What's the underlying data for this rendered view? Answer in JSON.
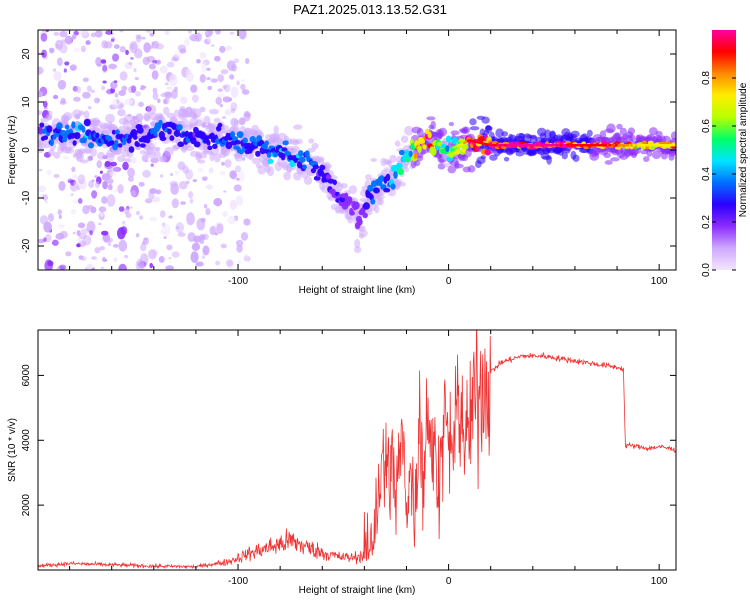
{
  "figure": {
    "title": "PAZ1.2025.013.13.52.G31"
  },
  "colorbar": {
    "label": "Normalized spectral amplitude",
    "ticks": [
      0.0,
      0.2,
      0.4,
      0.6,
      0.8
    ],
    "tick_labels": [
      "0.0",
      "0.2",
      "0.4",
      "0.6",
      "0.8"
    ],
    "colors": [
      "#f2e6ff",
      "#cfa9ff",
      "#8b2cff",
      "#2b00ff",
      "#0070ff",
      "#00e5ff",
      "#00ff66",
      "#b8ff00",
      "#ffee00",
      "#ff8a00",
      "#ff0000",
      "#ff00a0"
    ]
  },
  "chart_data": [
    {
      "type": "heatmap",
      "title": "",
      "xlabel": "Height of straight line (km)",
      "ylabel": "Frequency (Hz)",
      "xlim": [
        -195,
        108
      ],
      "ylim": [
        -25,
        25
      ],
      "xticks": [
        -100,
        0,
        100
      ],
      "xtick_labels": [
        "-100",
        "0",
        "100"
      ],
      "yticks": [
        -20,
        -10,
        0,
        10,
        20
      ],
      "ytick_labels": [
        "-20",
        "-10",
        "0",
        "10",
        "20"
      ],
      "value_label": "Normalized spectral amplitude",
      "value_range": [
        0,
        1
      ],
      "ridge": {
        "x": [
          -195,
          -175,
          -155,
          -135,
          -118,
          -105,
          -95,
          -85,
          -75,
          -65,
          -58,
          -50,
          -45,
          -42,
          -38,
          -33,
          -28,
          -22,
          -18,
          -14,
          -10,
          -5,
          0,
          5,
          10,
          20,
          40,
          60,
          80,
          95,
          108
        ],
        "frequency": [
          4,
          3,
          2,
          4,
          3,
          2,
          1,
          0,
          -1,
          -3,
          -6,
          -10,
          -13,
          -15,
          -9,
          -8,
          -6,
          -2,
          0,
          1,
          2,
          1,
          0,
          1,
          2,
          1,
          1,
          1,
          1,
          1,
          1
        ],
        "amplitude": [
          0.28,
          0.35,
          0.3,
          0.3,
          0.27,
          0.3,
          0.33,
          0.35,
          0.38,
          0.3,
          0.25,
          0.22,
          0.2,
          0.18,
          0.3,
          0.35,
          0.35,
          0.45,
          0.5,
          0.8,
          0.85,
          0.6,
          0.5,
          0.7,
          0.9,
          0.95,
          1.0,
          0.95,
          0.85,
          0.7,
          0.75
        ]
      },
      "scatter_extent_x": [
        -195,
        -100
      ]
    },
    {
      "type": "line",
      "title": "",
      "xlabel": "Height of straight line (km)",
      "ylabel": "SNR (10 * v/v)",
      "xlim": [
        -195,
        108
      ],
      "ylim": [
        0,
        7400
      ],
      "xticks": [
        -100,
        0,
        100
      ],
      "xtick_labels": [
        "-100",
        "0",
        "100"
      ],
      "yticks": [
        2000,
        4000,
        6000
      ],
      "ytick_labels": [
        "2000",
        "4000",
        "6000"
      ],
      "color": "#ee3333",
      "x": [
        -195,
        -180,
        -160,
        -140,
        -120,
        -105,
        -95,
        -85,
        -75,
        -65,
        -58,
        -52,
        -46,
        -40,
        -36,
        -32,
        -28,
        -25,
        -22,
        -20,
        -18,
        -16,
        -14,
        -12,
        -10,
        -8,
        -6,
        -4,
        -2,
        0,
        4,
        8,
        12,
        16,
        20,
        25,
        30,
        35,
        40,
        45,
        50,
        55,
        60,
        65,
        70,
        75,
        80,
        83,
        84,
        85,
        90,
        95,
        100,
        105,
        108
      ],
      "y": [
        120,
        200,
        160,
        120,
        100,
        250,
        500,
        700,
        900,
        650,
        500,
        400,
        380,
        450,
        800,
        3000,
        3200,
        2500,
        4000,
        2000,
        3500,
        1500,
        5000,
        2500,
        5500,
        3000,
        3800,
        3000,
        4500,
        3500,
        5000,
        4000,
        5200,
        5800,
        6100,
        6400,
        6500,
        6600,
        6600,
        6600,
        6550,
        6500,
        6450,
        6400,
        6350,
        6300,
        6250,
        6200,
        3800,
        3850,
        3800,
        3750,
        3800,
        3750,
        3700
      ]
    }
  ]
}
